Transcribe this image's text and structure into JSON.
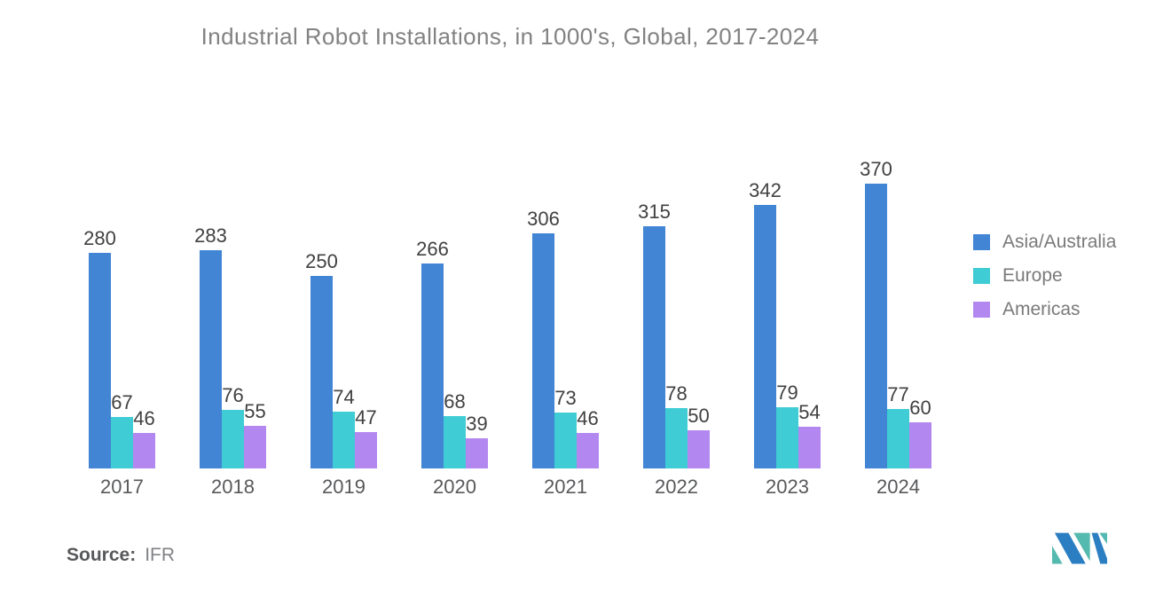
{
  "title": "Industrial Robot Installations, in 1000's, Global, 2017-2024",
  "source": {
    "label": "Source:",
    "value": "IFR"
  },
  "chart_data": {
    "type": "bar",
    "title": "Industrial Robot Installations, in 1000's, Global, 2017-2024",
    "categories": [
      "2017",
      "2018",
      "2019",
      "2020",
      "2021",
      "2022",
      "2023",
      "2024"
    ],
    "series": [
      {
        "name": "Asia/Australia",
        "color": "#4285D5",
        "values": [
          280,
          283,
          250,
          266,
          306,
          315,
          342,
          370
        ]
      },
      {
        "name": "Europe",
        "color": "#3FCCD4",
        "values": [
          67,
          76,
          74,
          68,
          73,
          78,
          79,
          77
        ]
      },
      {
        "name": "Americas",
        "color": "#B288F0",
        "values": [
          46,
          55,
          47,
          39,
          46,
          50,
          54,
          60
        ]
      }
    ],
    "xlabel": "",
    "ylabel": "",
    "ylim": [
      0,
      370
    ],
    "grid": false,
    "axes_visible": false,
    "value_labels": true,
    "legend_position": "right"
  },
  "text_colors": {
    "title": "#828282",
    "value_label": "#414042",
    "year_label": "#58595b",
    "legend_label": "#7a7a7a"
  },
  "logo": {
    "name": "mordor-intelligence-logo",
    "blue": "#2B7EC1",
    "teal": "#54B9AE"
  }
}
